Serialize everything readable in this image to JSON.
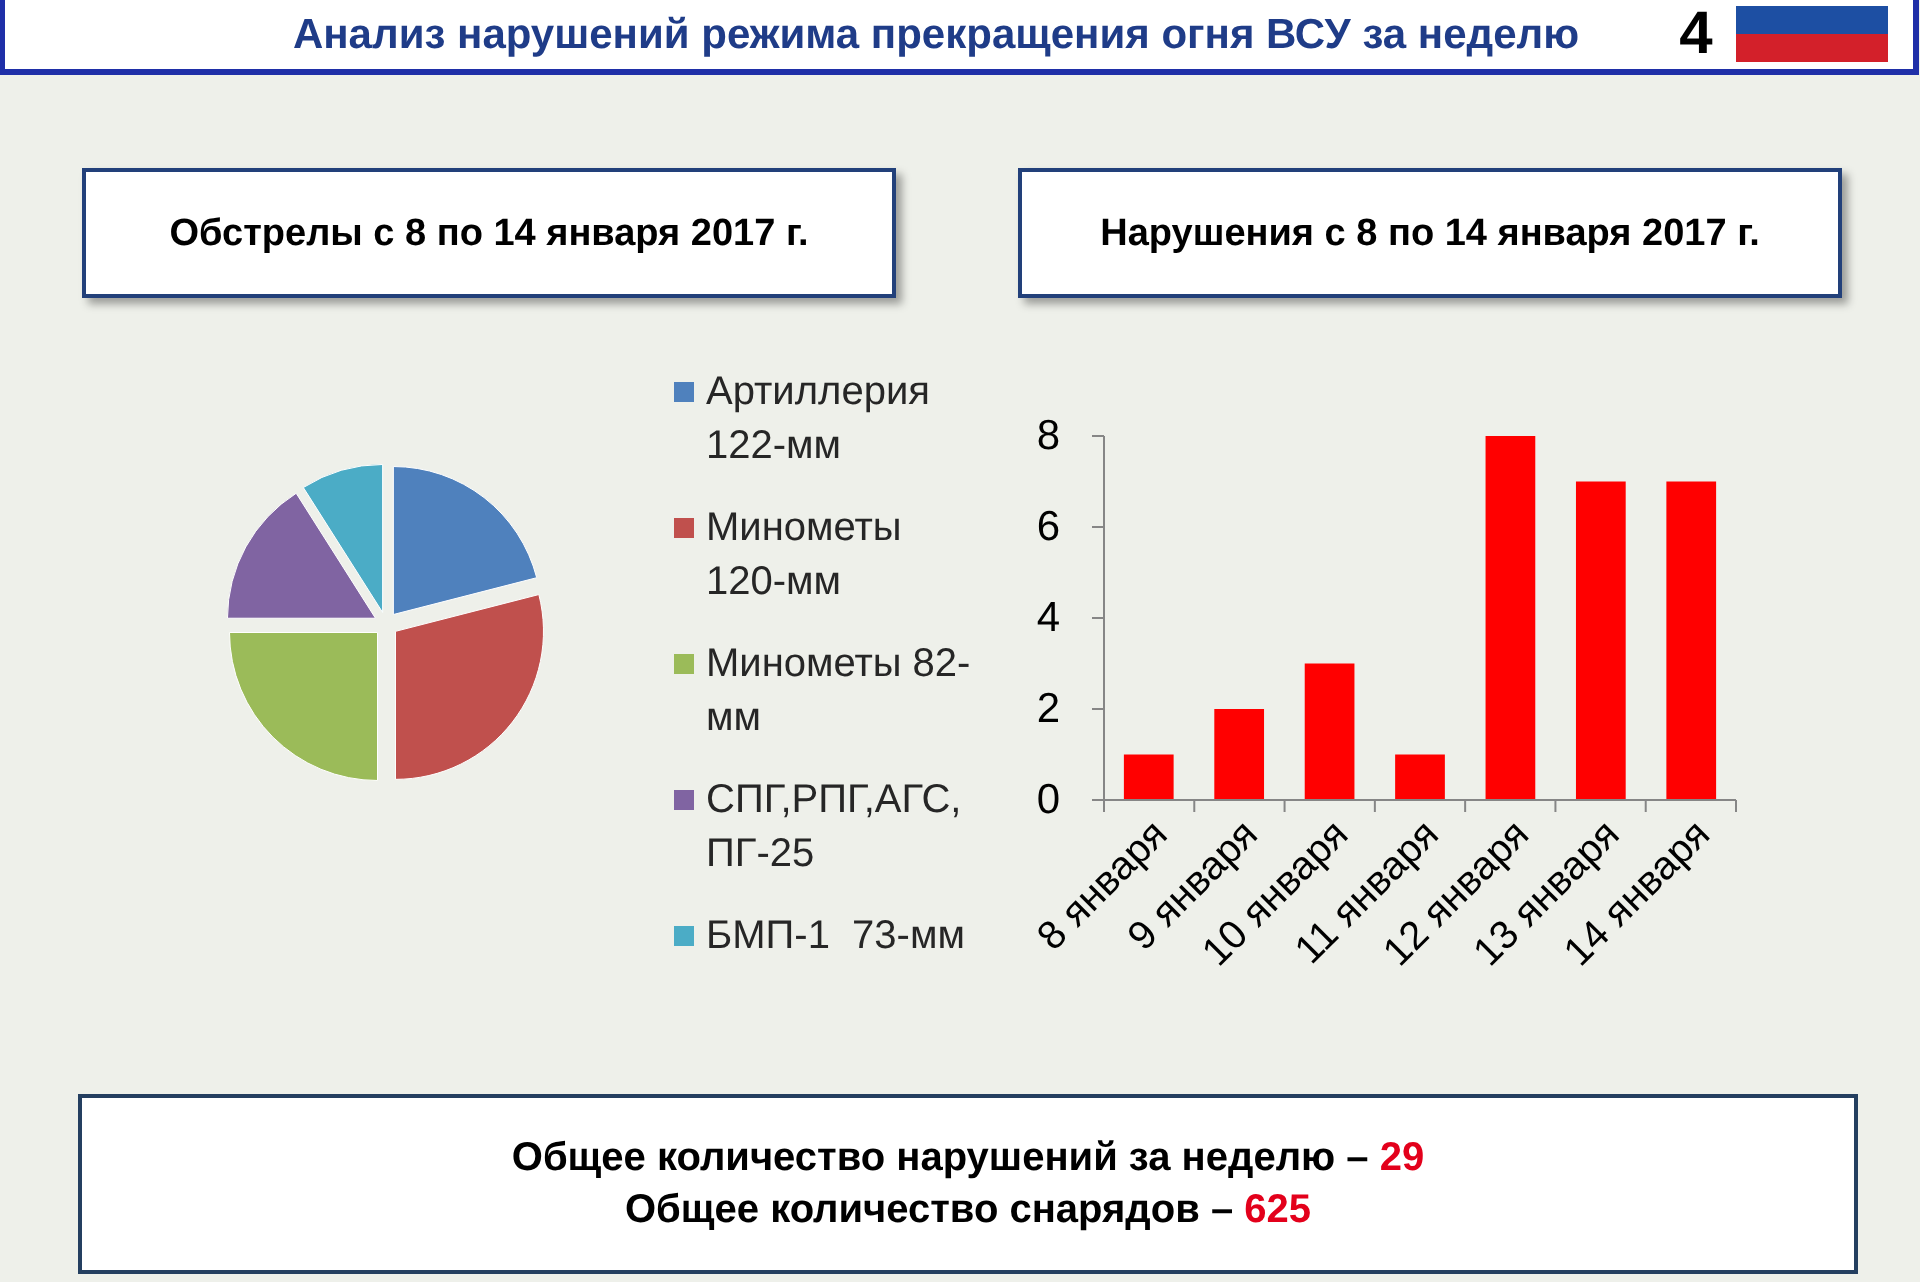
{
  "chart_data": [
    {
      "type": "other",
      "title": "Анализ нарушений режима прекращения огня ВСУ за неделю",
      "annotations": [
        "4"
      ]
    },
    {
      "type": "pie",
      "title": "Обстрелы с 8 по 14 января 2017 г.",
      "categories": [
        "Артиллерия 122-мм",
        "Минометы 120-мм",
        "Минометы 82-мм",
        "СПГ,РПГ,АГС, ПГ-25",
        "БМП-1  73-мм"
      ],
      "values": [
        21,
        29,
        25,
        16,
        9
      ],
      "colors": [
        "#4f81bd",
        "#c0504d",
        "#9bbb59",
        "#8064a2",
        "#4bacc6"
      ],
      "legend": "right"
    },
    {
      "type": "bar",
      "title": "Нарушения с 8 по 14 января 2017 г.",
      "categories": [
        "8 января",
        "9 января",
        "10 января",
        "11 января",
        "12 января",
        "13 января",
        "14 января"
      ],
      "values": [
        1,
        2,
        3,
        1,
        8,
        7,
        7
      ],
      "color": "#ff0000",
      "ylim": [
        0,
        8
      ],
      "yticks": [
        0,
        2,
        4,
        6,
        8
      ]
    },
    {
      "type": "other",
      "annotations": [
        "Общее количество нарушений за неделю – 29",
        "Общее количество снарядов – 625"
      ]
    }
  ]
}
